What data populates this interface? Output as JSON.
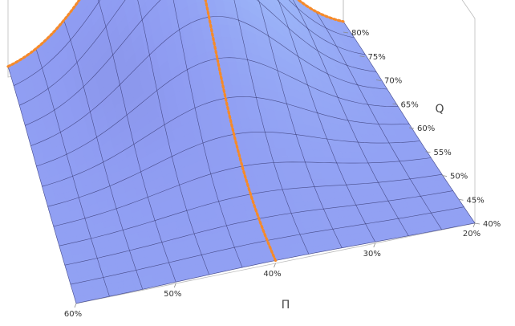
{
  "chart_data": {
    "type": "surface3d",
    "x_axis": {
      "label": "Π",
      "ticks": [
        "20%",
        "30%",
        "40%",
        "50%",
        "60%"
      ],
      "range": [
        0.2,
        0.6
      ]
    },
    "y_axis": {
      "label": "Q",
      "ticks": [
        "40%",
        "45%",
        "50%",
        "55%",
        "60%",
        "65%",
        "70%",
        "75%",
        "80%"
      ],
      "range": [
        0.4,
        0.8
      ]
    },
    "surface": {
      "shape": "gaussian-bump",
      "peak_x": 0.4,
      "peak_y": 0.8,
      "grid_lines": {
        "x": 12,
        "y": 12
      }
    },
    "highlighted_curves": [
      {
        "along": "x",
        "fixed_y": 0.8,
        "style": "dotted"
      },
      {
        "along": "y",
        "fixed_x": 0.4,
        "style": "dotted"
      }
    ],
    "grid": true,
    "colors": {
      "surface_light": "#a9ceff",
      "surface_mid": "#8f9cf2",
      "surface_shadow": "#4a3a7a",
      "mesh": "#2a2a60",
      "curve": "#f58a2a",
      "frame": "#bbbbbb"
    }
  }
}
